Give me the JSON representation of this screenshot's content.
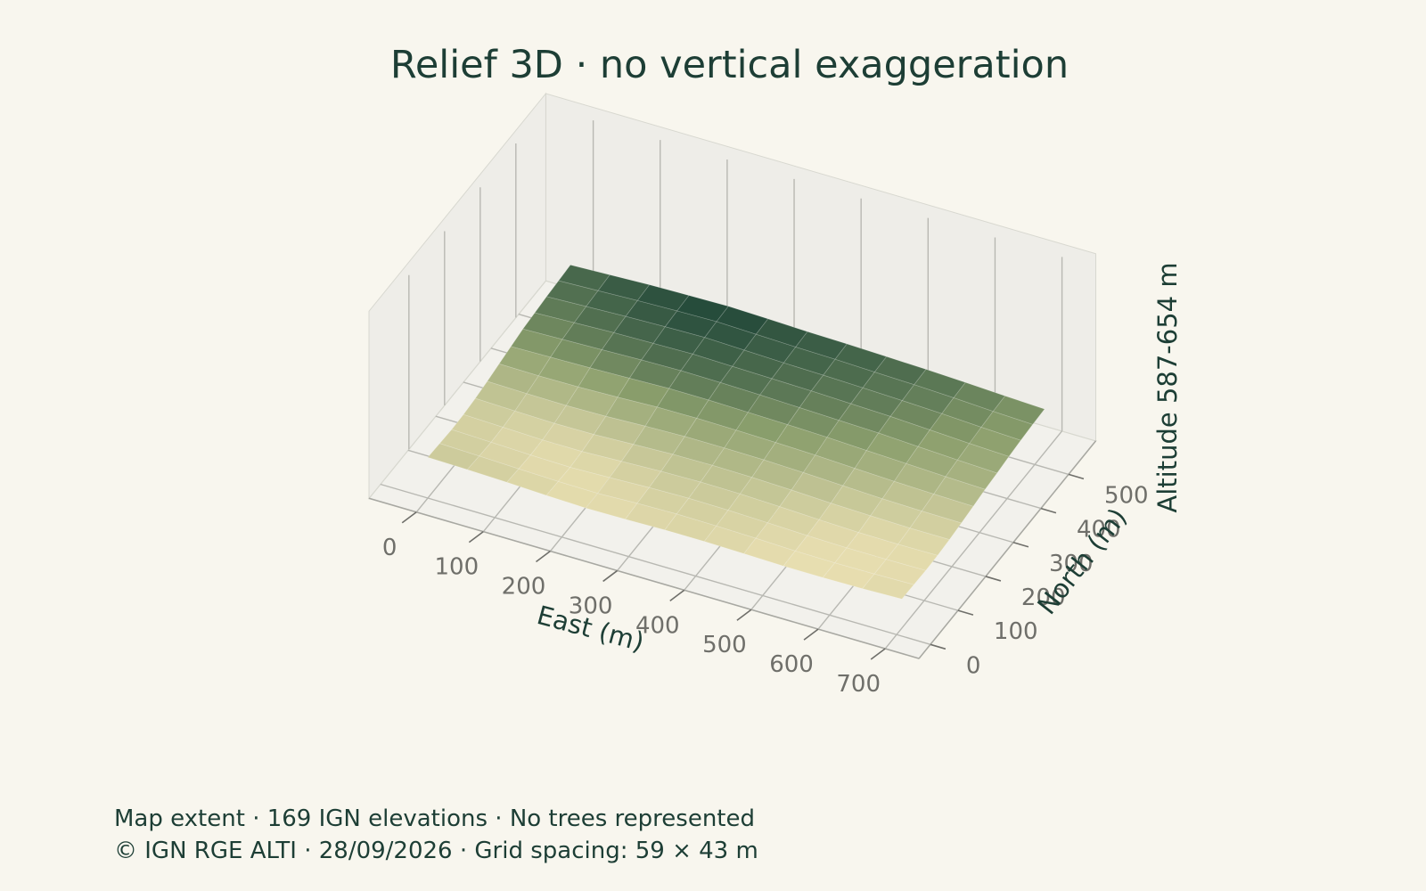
{
  "title": "Relief 3D · no vertical exaggeration",
  "footer": {
    "line1": "Map extent · 169 IGN elevations · No trees represented",
    "line2": "© IGN RGE ALTI · 28/09/2026 · Grid spacing: 59 × 43 m"
  },
  "colors": {
    "background": "#f8f6ee",
    "text": "#1d3e35",
    "tick_text": "#6f6f6a",
    "low": "#e8deb0",
    "mid": "#8a9e6c",
    "high": "#1f4638"
  },
  "chart_data": {
    "type": "surface3d",
    "title": "Relief 3D · no vertical exaggeration",
    "xlabel": "East (m)",
    "ylabel": "North (m)",
    "zlabel": "Altitude 587-654 m",
    "xlim": [
      0,
      708
    ],
    "ylim": [
      0,
      516
    ],
    "x_ticks": [
      "0",
      "100",
      "200",
      "300",
      "400",
      "500",
      "600",
      "700"
    ],
    "y_ticks": [
      "0",
      "100",
      "200",
      "300",
      "400",
      "500"
    ],
    "x_values": [
      0,
      59,
      118,
      177,
      236,
      295,
      354,
      413,
      472,
      531,
      590,
      649,
      708
    ],
    "y_values": [
      0,
      43,
      86,
      129,
      172,
      215,
      258,
      301,
      344,
      387,
      430,
      473,
      516
    ],
    "z_range": [
      587,
      654
    ],
    "z_rows_north_to_south": [
      [
        642,
        646,
        650,
        652,
        654,
        651,
        648,
        646,
        643,
        640,
        636,
        631,
        627
      ],
      [
        639,
        643,
        647,
        650,
        652,
        649,
        646,
        644,
        641,
        638,
        634,
        629,
        625
      ],
      [
        636,
        640,
        644,
        647,
        649,
        646,
        643,
        641,
        638,
        635,
        631,
        626,
        622
      ],
      [
        632,
        636,
        640,
        642,
        644,
        642,
        640,
        638,
        635,
        632,
        627,
        622,
        618
      ],
      [
        628,
        631,
        634,
        637,
        639,
        638,
        636,
        633,
        630,
        627,
        622,
        617,
        613
      ],
      [
        621,
        623,
        625,
        628,
        631,
        631,
        629,
        627,
        624,
        620,
        616,
        612,
        609
      ],
      [
        614,
        613,
        614,
        617,
        621,
        622,
        621,
        619,
        616,
        612,
        608,
        605,
        603
      ],
      [
        607,
        605,
        604,
        606,
        610,
        613,
        613,
        612,
        609,
        605,
        601,
        599,
        598
      ],
      [
        601,
        598,
        596,
        597,
        601,
        605,
        606,
        605,
        602,
        598,
        595,
        593,
        593
      ],
      [
        597,
        594,
        591,
        591,
        595,
        599,
        601,
        600,
        597,
        593,
        590,
        589,
        590
      ],
      [
        596,
        593,
        590,
        588,
        591,
        595,
        597,
        596,
        593,
        590,
        588,
        588,
        589
      ],
      [
        598,
        595,
        592,
        589,
        588,
        592,
        594,
        593,
        591,
        588,
        587,
        588,
        590
      ],
      [
        600,
        598,
        595,
        591,
        588,
        589,
        591,
        591,
        589,
        587,
        587,
        588,
        591
      ]
    ]
  }
}
